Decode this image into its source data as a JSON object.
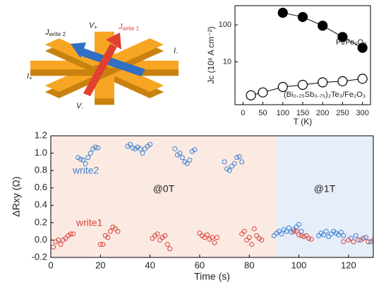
{
  "diagram": {
    "labels": [
      {
        "main": "J",
        "sub": "write 2"
      },
      {
        "main": "J",
        "sub": "write 1"
      },
      {
        "main": "V",
        "sub": "+"
      },
      {
        "main": "V",
        "sub": "-"
      },
      {
        "main": "I",
        "sub": "+"
      },
      {
        "main": "I",
        "sub": "-"
      }
    ]
  },
  "chart_data": [
    {
      "type": "line",
      "log_y": true,
      "xlabel": "T (K)",
      "ylabel": "Jc (10⁶ A cm⁻²)",
      "xlim": [
        -20,
        320
      ],
      "xticks": [
        0,
        50,
        100,
        150,
        200,
        250,
        300
      ],
      "ylim": [
        0.7,
        330
      ],
      "yticks": [
        10,
        100
      ],
      "series": [
        {
          "name": "Pt/Fe₂O₃",
          "color": "#000000",
          "marker": "filled",
          "x": [
            100,
            150,
            200,
            250,
            300
          ],
          "values": [
            212,
            163,
            95,
            47,
            24
          ]
        },
        {
          "name": "(Bi₀.₂₅Sb₀.₇₅)₂Te₃/Fe₂O₃",
          "color": "#000000",
          "marker": "open",
          "x": [
            20,
            50,
            100,
            150,
            200,
            250,
            300
          ],
          "values": [
            1.25,
            1.5,
            2.1,
            2.4,
            2.8,
            3.0,
            3.5
          ]
        }
      ]
    },
    {
      "type": "scatter",
      "xlabel": "Time (s)",
      "ylabel": "ΔRxy (Ω)",
      "xlim": [
        0,
        130
      ],
      "xticks": [
        0,
        20,
        40,
        60,
        80,
        100,
        120
      ],
      "ylim": [
        -0.2,
        1.2
      ],
      "yticks": [
        -0.2,
        {
          "value": 0,
          "label": "0.0"
        },
        0.2,
        0.4,
        0.6,
        0.8,
        {
          "value": 1,
          "label": "1.0"
        },
        1.2
      ],
      "shaded_regions": [
        {
          "from": 0,
          "to": 91,
          "color": "#fbeae2"
        },
        {
          "from": 91,
          "to": 130,
          "color": "#e6eef9"
        }
      ],
      "annotations": [
        "@0T",
        "@1T"
      ],
      "series": [
        {
          "name": "write2",
          "color": "#3b7fd1",
          "x": [
            11,
            12,
            13,
            14,
            15,
            16,
            17,
            18,
            19,
            31,
            32,
            33,
            34,
            35,
            36,
            37,
            38,
            39,
            40,
            50,
            51,
            52,
            53,
            54,
            55,
            56,
            57,
            58,
            70,
            71,
            72,
            73,
            74,
            75,
            76,
            77,
            90,
            91,
            92,
            93,
            94,
            95,
            96,
            97,
            98,
            99,
            100,
            101,
            108,
            109,
            110,
            111,
            112,
            113,
            114,
            115,
            116,
            117,
            118,
            121,
            123,
            125,
            127,
            129
          ],
          "values": [
            0.95,
            0.93,
            0.92,
            0.88,
            0.95,
            1.0,
            1.05,
            1.07,
            1.06,
            1.08,
            1.1,
            1.06,
            1.05,
            1.07,
            1.05,
            1.0,
            1.05,
            1.08,
            1.1,
            1.05,
            0.98,
            1.0,
            0.95,
            0.9,
            0.88,
            0.92,
            1.02,
            1.04,
            0.9,
            0.82,
            0.8,
            0.85,
            0.88,
            0.95,
            0.96,
            0.9,
            0.05,
            0.08,
            0.1,
            0.07,
            0.12,
            0.1,
            0.14,
            0.09,
            0.12,
            0.15,
            0.18,
            0.1,
            0.05,
            0.08,
            0.06,
            0.1,
            0.04,
            0.07,
            0.1,
            0.08,
            0.06,
            0.09,
            0.05,
            0.02,
            0.05,
            0.0,
            0.03,
            -0.02
          ]
        },
        {
          "name": "write1",
          "color": "#d9433a",
          "x": [
            1,
            2,
            3,
            4,
            5,
            6,
            7,
            8,
            9,
            20,
            21,
            22,
            23,
            24,
            25,
            26,
            27,
            41,
            42,
            43,
            44,
            45,
            46,
            47,
            48,
            60,
            61,
            62,
            63,
            64,
            65,
            66,
            67,
            77,
            78,
            79,
            80,
            81,
            82,
            83,
            84,
            85,
            98,
            99,
            100,
            101,
            102,
            103,
            104,
            105,
            118,
            120,
            122,
            124,
            126,
            128,
            130
          ],
          "values": [
            -0.08,
            -0.02,
            0.0,
            -0.05,
            0.0,
            0.02,
            0.05,
            0.07,
            0.07,
            -0.05,
            -0.05,
            0.05,
            0.03,
            0.1,
            0.15,
            0.13,
            0.1,
            0.02,
            0.05,
            0.07,
            0.0,
            0.03,
            0.05,
            -0.05,
            -0.1,
            0.08,
            0.05,
            0.03,
            0.06,
            0.01,
            0.03,
            -0.03,
            0.03,
            0.07,
            0.1,
            0.0,
            0.03,
            -0.05,
            0.13,
            0.05,
            0.02,
            0.0,
            0.1,
            0.1,
            0.06,
            0.05,
            0.04,
            0.05,
            0.02,
            0.01,
            -0.02,
            0.0,
            -0.02,
            0.0,
            0.02,
            -0.02,
            0.0
          ]
        }
      ]
    }
  ]
}
